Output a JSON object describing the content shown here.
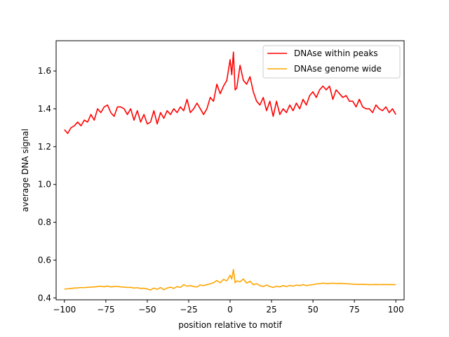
{
  "chart_data": {
    "type": "line",
    "title": "",
    "xlabel": "position relative to motif",
    "ylabel": "average DNA signal",
    "xlim": [
      -105,
      105
    ],
    "ylim": [
      0.39,
      1.76
    ],
    "xticks": [
      -100,
      -75,
      -50,
      -25,
      0,
      25,
      50,
      75,
      100
    ],
    "yticks": [
      0.4,
      0.6,
      0.8,
      1.0,
      1.2,
      1.4,
      1.6
    ],
    "ytick_labels": [
      "0.4",
      "0.6",
      "0.8",
      "1.0",
      "1.2",
      "1.4",
      "1.6"
    ],
    "grid": false,
    "legend_position": "top-right",
    "series": [
      {
        "name": "DNAse within peaks",
        "color": "#ff0000",
        "x": [
          -100,
          -98,
          -96,
          -94,
          -92,
          -90,
          -88,
          -86,
          -84,
          -82,
          -80,
          -78,
          -76,
          -74,
          -72,
          -70,
          -68,
          -66,
          -64,
          -62,
          -60,
          -58,
          -56,
          -54,
          -52,
          -50,
          -48,
          -46,
          -44,
          -42,
          -40,
          -38,
          -36,
          -34,
          -32,
          -30,
          -28,
          -26,
          -24,
          -22,
          -20,
          -18,
          -16,
          -14,
          -12,
          -10,
          -8,
          -6,
          -4,
          -2,
          0,
          1,
          2,
          3,
          4,
          6,
          8,
          10,
          12,
          14,
          16,
          18,
          20,
          22,
          24,
          26,
          28,
          30,
          32,
          34,
          36,
          38,
          40,
          42,
          44,
          46,
          48,
          50,
          52,
          54,
          56,
          58,
          60,
          62,
          64,
          66,
          68,
          70,
          72,
          74,
          76,
          78,
          80,
          82,
          84,
          86,
          88,
          90,
          92,
          94,
          96,
          98,
          100
        ],
        "values": [
          1.29,
          1.27,
          1.3,
          1.31,
          1.33,
          1.31,
          1.34,
          1.33,
          1.37,
          1.34,
          1.4,
          1.38,
          1.41,
          1.42,
          1.38,
          1.36,
          1.41,
          1.41,
          1.4,
          1.37,
          1.4,
          1.34,
          1.39,
          1.33,
          1.37,
          1.32,
          1.33,
          1.39,
          1.32,
          1.38,
          1.35,
          1.39,
          1.37,
          1.4,
          1.38,
          1.41,
          1.39,
          1.45,
          1.38,
          1.4,
          1.43,
          1.4,
          1.37,
          1.4,
          1.46,
          1.44,
          1.53,
          1.48,
          1.52,
          1.55,
          1.66,
          1.58,
          1.7,
          1.5,
          1.51,
          1.63,
          1.55,
          1.53,
          1.57,
          1.49,
          1.44,
          1.42,
          1.46,
          1.39,
          1.44,
          1.36,
          1.44,
          1.37,
          1.4,
          1.38,
          1.42,
          1.39,
          1.43,
          1.4,
          1.45,
          1.42,
          1.47,
          1.49,
          1.46,
          1.5,
          1.52,
          1.5,
          1.52,
          1.45,
          1.5,
          1.48,
          1.46,
          1.47,
          1.44,
          1.44,
          1.41,
          1.45,
          1.41,
          1.4,
          1.4,
          1.38,
          1.42,
          1.4,
          1.39,
          1.41,
          1.38,
          1.4,
          1.37
        ]
      },
      {
        "name": "DNAse genome wide",
        "color": "#ffa500",
        "x": [
          -100,
          -98,
          -96,
          -94,
          -92,
          -90,
          -88,
          -86,
          -84,
          -82,
          -80,
          -78,
          -76,
          -74,
          -72,
          -70,
          -68,
          -66,
          -64,
          -62,
          -60,
          -58,
          -56,
          -54,
          -52,
          -50,
          -48,
          -46,
          -44,
          -42,
          -40,
          -38,
          -36,
          -34,
          -32,
          -30,
          -28,
          -26,
          -24,
          -22,
          -20,
          -18,
          -16,
          -14,
          -12,
          -10,
          -8,
          -6,
          -4,
          -2,
          0,
          1,
          2,
          3,
          4,
          6,
          8,
          10,
          12,
          14,
          16,
          18,
          20,
          22,
          24,
          26,
          28,
          30,
          32,
          34,
          36,
          38,
          40,
          42,
          44,
          46,
          48,
          50,
          52,
          54,
          56,
          58,
          60,
          62,
          64,
          66,
          68,
          70,
          72,
          74,
          76,
          78,
          80,
          82,
          84,
          86,
          88,
          90,
          92,
          94,
          96,
          98,
          100
        ],
        "values": [
          0.447,
          0.448,
          0.45,
          0.452,
          0.453,
          0.455,
          0.454,
          0.456,
          0.457,
          0.458,
          0.46,
          0.462,
          0.459,
          0.463,
          0.458,
          0.46,
          0.461,
          0.458,
          0.457,
          0.455,
          0.456,
          0.452,
          0.454,
          0.45,
          0.451,
          0.447,
          0.442,
          0.452,
          0.445,
          0.455,
          0.443,
          0.452,
          0.457,
          0.45,
          0.46,
          0.455,
          0.47,
          0.462,
          0.465,
          0.46,
          0.458,
          0.468,
          0.465,
          0.47,
          0.475,
          0.48,
          0.492,
          0.48,
          0.498,
          0.49,
          0.52,
          0.5,
          0.55,
          0.48,
          0.49,
          0.485,
          0.5,
          0.478,
          0.488,
          0.47,
          0.475,
          0.465,
          0.46,
          0.468,
          0.46,
          0.455,
          0.462,
          0.458,
          0.465,
          0.46,
          0.466,
          0.462,
          0.468,
          0.465,
          0.47,
          0.465,
          0.468,
          0.47,
          0.474,
          0.475,
          0.478,
          0.476,
          0.476,
          0.478,
          0.476,
          0.477,
          0.476,
          0.475,
          0.474,
          0.473,
          0.472,
          0.471,
          0.472,
          0.471,
          0.47,
          0.47,
          0.471,
          0.47,
          0.471,
          0.47,
          0.471,
          0.47,
          0.47
        ]
      }
    ]
  }
}
